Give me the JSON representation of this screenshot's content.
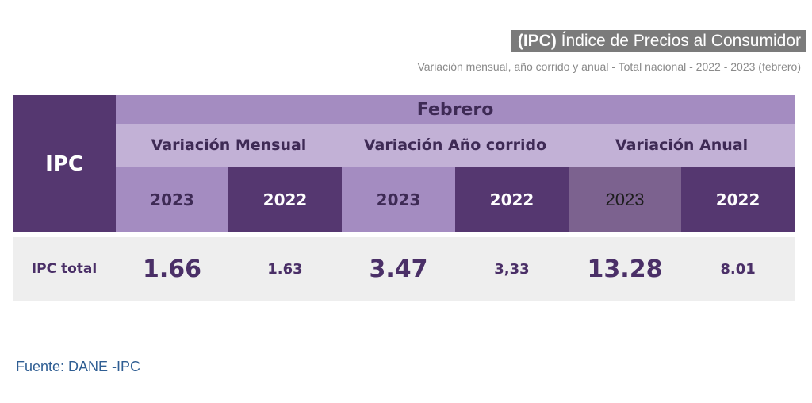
{
  "header": {
    "title_bold": "(IPC)",
    "title_rest": " Índice de Precios al Consumidor",
    "subtitle": "Variación mensual, año corrido y anual - Total nacional  - 2022 - 2023 (febrero)"
  },
  "table": {
    "row_header": "IPC",
    "month": "Febrero",
    "groups": [
      "Variación Mensual",
      "Variación Año corrido",
      "Variación Anual"
    ],
    "years": [
      "2023",
      "2022",
      "2023",
      "2022",
      "2023",
      "2022"
    ],
    "row_label": "IPC total",
    "values": [
      "1.66",
      "1.63",
      "3.47",
      "3,33",
      "13.28",
      "8.01"
    ]
  },
  "source": "Fuente: DANE -IPC"
}
